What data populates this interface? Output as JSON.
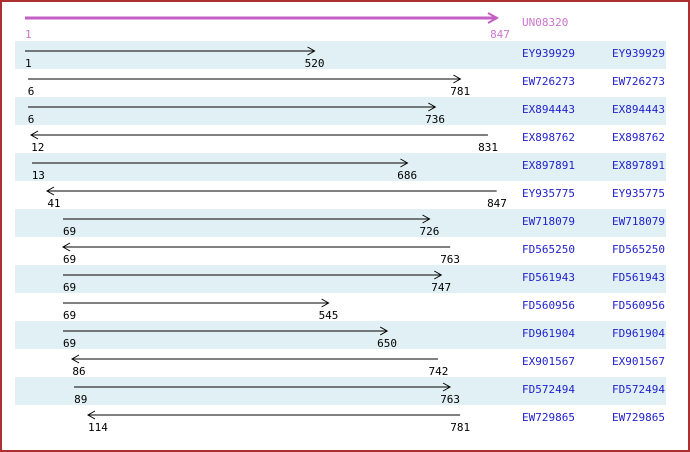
{
  "figure": {
    "reference": {
      "label": "UN08320",
      "start": 1,
      "end": 847
    },
    "scale": {
      "min": 1,
      "max": 847
    },
    "alignments": [
      {
        "label": "EY939929",
        "start": 1,
        "end": 520,
        "direction": "right"
      },
      {
        "label": "EW726273",
        "start": 6,
        "end": 781,
        "direction": "right"
      },
      {
        "label": "EX894443",
        "start": 6,
        "end": 736,
        "direction": "right"
      },
      {
        "label": "EX898762",
        "start": 12,
        "end": 831,
        "direction": "left"
      },
      {
        "label": "EX897891",
        "start": 13,
        "end": 686,
        "direction": "right"
      },
      {
        "label": "EY935775",
        "start": 41,
        "end": 847,
        "direction": "left"
      },
      {
        "label": "EW718079",
        "start": 69,
        "end": 726,
        "direction": "right"
      },
      {
        "label": "FD565250",
        "start": 69,
        "end": 763,
        "direction": "left"
      },
      {
        "label": "FD561943",
        "start": 69,
        "end": 747,
        "direction": "right"
      },
      {
        "label": "FD560956",
        "start": 69,
        "end": 545,
        "direction": "right"
      },
      {
        "label": "FD961904",
        "start": 69,
        "end": 650,
        "direction": "right"
      },
      {
        "label": "EX901567",
        "start": 86,
        "end": 742,
        "direction": "left"
      },
      {
        "label": "FD572494",
        "start": 89,
        "end": 763,
        "direction": "right"
      },
      {
        "label": "EW729865",
        "start": 114,
        "end": 781,
        "direction": "left"
      }
    ],
    "colors": {
      "border": "#ae2f2f",
      "band": "#e1f0f5",
      "reference": "#c45fc4",
      "reference_text": "#cd74cd",
      "link": "#2121cd",
      "ink": "#000000",
      "background": "#ffffff"
    }
  }
}
